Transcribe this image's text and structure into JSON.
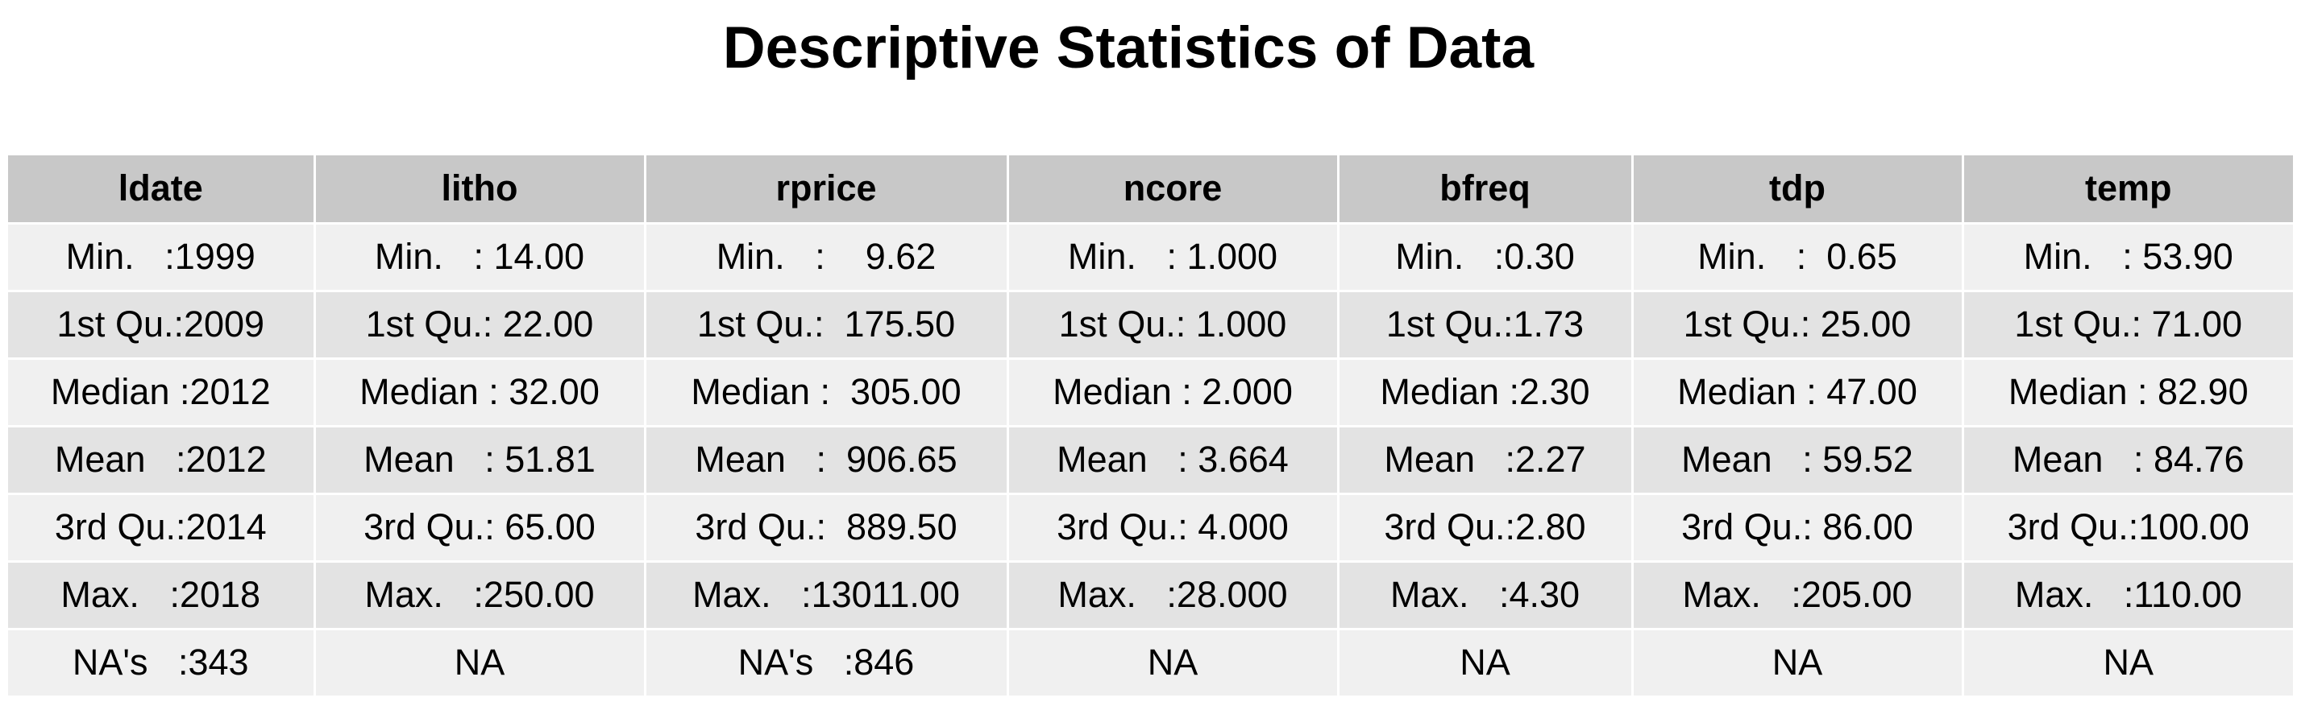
{
  "chart_data": {
    "type": "table",
    "title": "Descriptive Statistics of Data",
    "columns": [
      "ldate",
      "litho",
      "rprice",
      "ncore",
      "bfreq",
      "tdp",
      "temp"
    ],
    "rows": [
      [
        "Min.   :1999",
        "Min.   : 14.00",
        "Min.   :    9.62",
        "Min.   : 1.000",
        "Min.   :0.30",
        "Min.   :  0.65",
        "Min.   : 53.90"
      ],
      [
        "1st Qu.:2009",
        "1st Qu.: 22.00",
        "1st Qu.:  175.50",
        "1st Qu.: 1.000",
        "1st Qu.:1.73",
        "1st Qu.: 25.00",
        "1st Qu.: 71.00"
      ],
      [
        "Median :2012",
        "Median : 32.00",
        "Median :  305.00",
        "Median : 2.000",
        "Median :2.30",
        "Median : 47.00",
        "Median : 82.90"
      ],
      [
        "Mean   :2012",
        "Mean   : 51.81",
        "Mean   :  906.65",
        "Mean   : 3.664",
        "Mean   :2.27",
        "Mean   : 59.52",
        "Mean   : 84.76"
      ],
      [
        "3rd Qu.:2014",
        "3rd Qu.: 65.00",
        "3rd Qu.:  889.50",
        "3rd Qu.: 4.000",
        "3rd Qu.:2.80",
        "3rd Qu.: 86.00",
        "3rd Qu.:100.00"
      ],
      [
        "Max.   :2018",
        "Max.   :250.00",
        "Max.   :13011.00",
        "Max.   :28.000",
        "Max.   :4.30",
        "Max.   :205.00",
        "Max.   :110.00"
      ],
      [
        "NA's   :343",
        "NA",
        "NA's   :846",
        "NA",
        "NA",
        "NA",
        "NA"
      ]
    ]
  },
  "colors": {
    "header_bg": "#c8c8c8",
    "row_odd_bg": "#f0f0f0",
    "row_even_bg": "#e3e3e3",
    "cell_border": "#ffffff"
  }
}
